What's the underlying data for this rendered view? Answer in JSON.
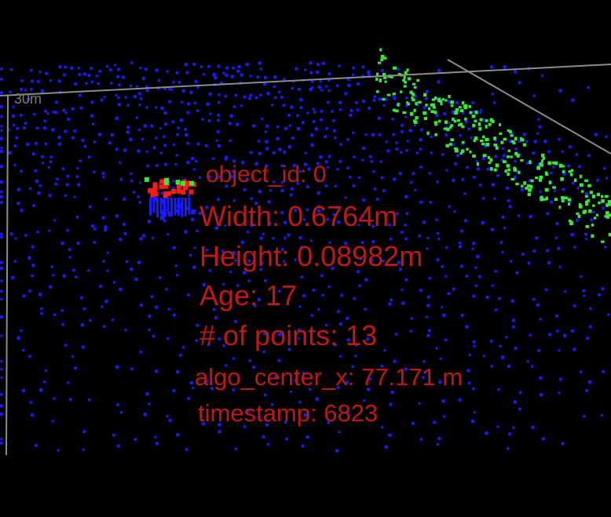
{
  "viewer": {
    "grid_label": "30m",
    "colors": {
      "background": "#000000",
      "ground_points": "#1a1aff",
      "vegetation_points": "#39e639",
      "object_top": "#ff1a1a",
      "object_body": "#1a1aff",
      "grid_line": "#8c8c8c",
      "overlay_text": "#c01818"
    }
  },
  "object_info": {
    "object_id": "object_id: 0",
    "width": "Width: 0.6764m",
    "height": "Height: 0.08982m",
    "age": "Age: 17",
    "num_points": "# of points: 13",
    "algo_center_x": "algo_center_x: 77.171 m",
    "timestamp": "timestamp: 6823"
  }
}
